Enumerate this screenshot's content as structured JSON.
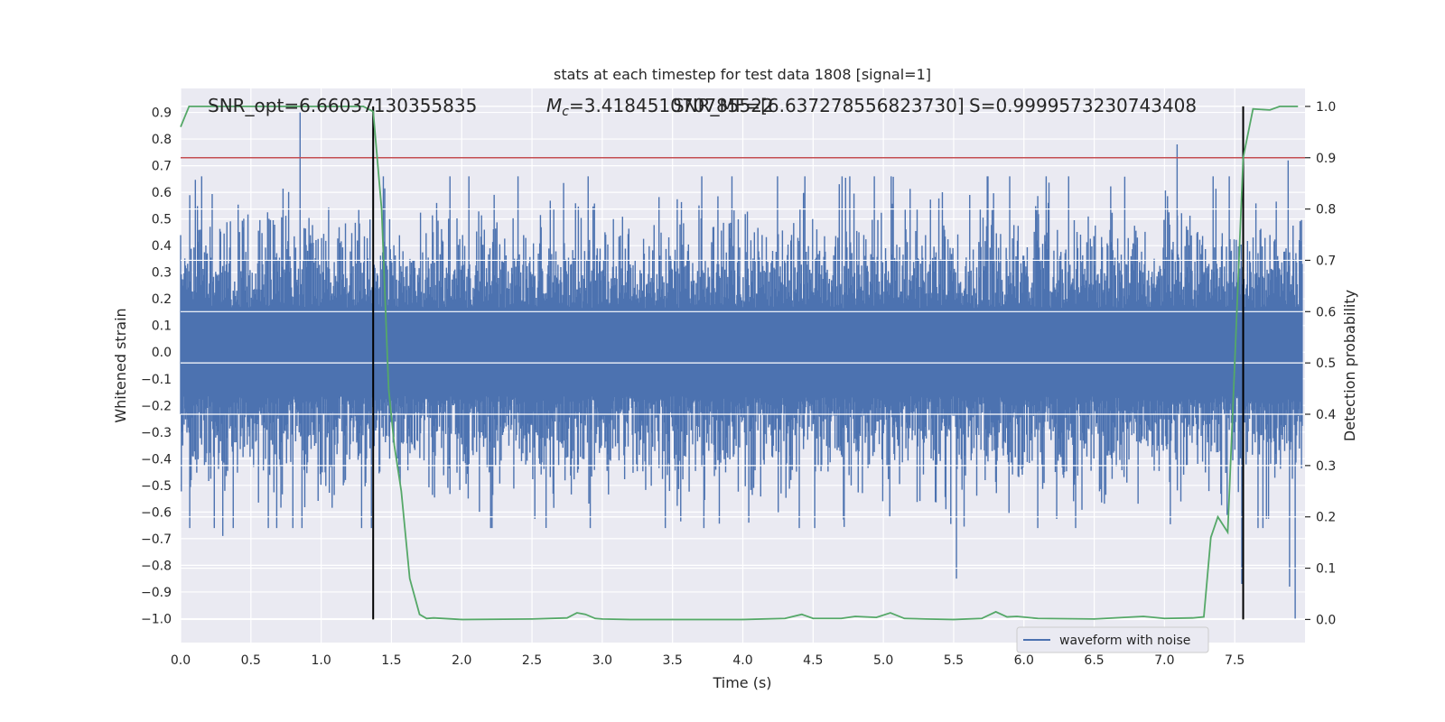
{
  "chart_data": {
    "type": "line",
    "title": "stats at each timestep for test data 1808 [signal=1]",
    "xlabel": "Time (s)",
    "ylabel_left": "Whitened strain",
    "ylabel_right": "Detection probability",
    "xlim": [
      0.0,
      8.0
    ],
    "ylim_left": [
      -1.09,
      0.99
    ],
    "ylim_right": [
      -0.045,
      1.035
    ],
    "x_ticks": [
      "0.0",
      "0.5",
      "1.0",
      "1.5",
      "2.0",
      "2.5",
      "3.0",
      "3.5",
      "4.0",
      "4.5",
      "5.0",
      "5.5",
      "6.0",
      "6.5",
      "7.0",
      "7.5"
    ],
    "y_ticks_left": [
      "0.9",
      "0.8",
      "0.7",
      "0.6",
      "0.5",
      "0.4",
      "0.3",
      "0.2",
      "0.1",
      "0.0",
      "−0.1",
      "−0.2",
      "−0.3",
      "−0.4",
      "−0.5",
      "−0.6",
      "−0.7",
      "−0.8",
      "−0.9",
      "−1.0"
    ],
    "y_ticks_right": [
      "1.0",
      "0.9",
      "0.8",
      "0.7",
      "0.6",
      "0.5",
      "0.4",
      "0.3",
      "0.2",
      "0.1",
      "0.0"
    ],
    "grid": true,
    "legend_position": "lower-right",
    "annotations": {
      "snr_opt": "SNR_opt=6.66037130355835",
      "mc_prefix": "M",
      "mc_sub": "c",
      "mc_value": "=3.418451070785522",
      "snr_mf": "SNR_MF=[6.637278556823730]",
      "s_value": "S=0.9999573230743408"
    },
    "threshold_line": {
      "y": 0.9,
      "axis": "right",
      "color": "#c44e52"
    },
    "vertical_lines": [
      1.37,
      7.56
    ],
    "vertical_line_color": "#000000",
    "series": [
      {
        "name": "waveform with noise",
        "axis": "left",
        "color": "#4c72b0",
        "typical_amplitude": 0.3,
        "peaks": [
          {
            "x": 0.85,
            "y": 0.9
          },
          {
            "x": 0.3,
            "y": -0.69
          },
          {
            "x": 5.52,
            "y": -0.85
          },
          {
            "x": 7.09,
            "y": 0.78
          },
          {
            "x": 7.93,
            "y": -1.0
          },
          {
            "x": 7.88,
            "y": 0.72
          },
          {
            "x": 7.89,
            "y": -0.88
          },
          {
            "x": 7.55,
            "y": -0.87
          }
        ]
      },
      {
        "name": "",
        "axis": "right",
        "color": "#55a868",
        "x": [
          0.0,
          0.06,
          0.2,
          0.5,
          1.0,
          1.3,
          1.37,
          1.43,
          1.48,
          1.52,
          1.57,
          1.63,
          1.7,
          1.75,
          1.8,
          2.0,
          2.5,
          2.75,
          2.82,
          2.88,
          2.95,
          3.0,
          3.2,
          3.5,
          4.0,
          4.3,
          4.42,
          4.5,
          4.7,
          4.8,
          4.95,
          5.05,
          5.15,
          5.3,
          5.5,
          5.7,
          5.8,
          5.88,
          5.95,
          6.1,
          6.5,
          6.85,
          7.0,
          7.2,
          7.28,
          7.33,
          7.38,
          7.45,
          7.5,
          7.56,
          7.63,
          7.75,
          7.82,
          7.95
        ],
        "y": [
          0.96,
          1.0,
          1.0,
          1.0,
          1.0,
          1.0,
          0.99,
          0.8,
          0.45,
          0.34,
          0.25,
          0.08,
          0.01,
          0.002,
          0.003,
          0.0,
          0.001,
          0.003,
          0.013,
          0.01,
          0.002,
          0.001,
          0.0,
          0.0,
          0.0,
          0.002,
          0.01,
          0.002,
          0.002,
          0.006,
          0.004,
          0.013,
          0.002,
          0.001,
          0.0,
          0.002,
          0.015,
          0.005,
          0.006,
          0.002,
          0.001,
          0.006,
          0.002,
          0.003,
          0.005,
          0.16,
          0.2,
          0.17,
          0.5,
          0.9,
          0.995,
          0.993,
          1.0,
          1.0
        ]
      }
    ]
  }
}
